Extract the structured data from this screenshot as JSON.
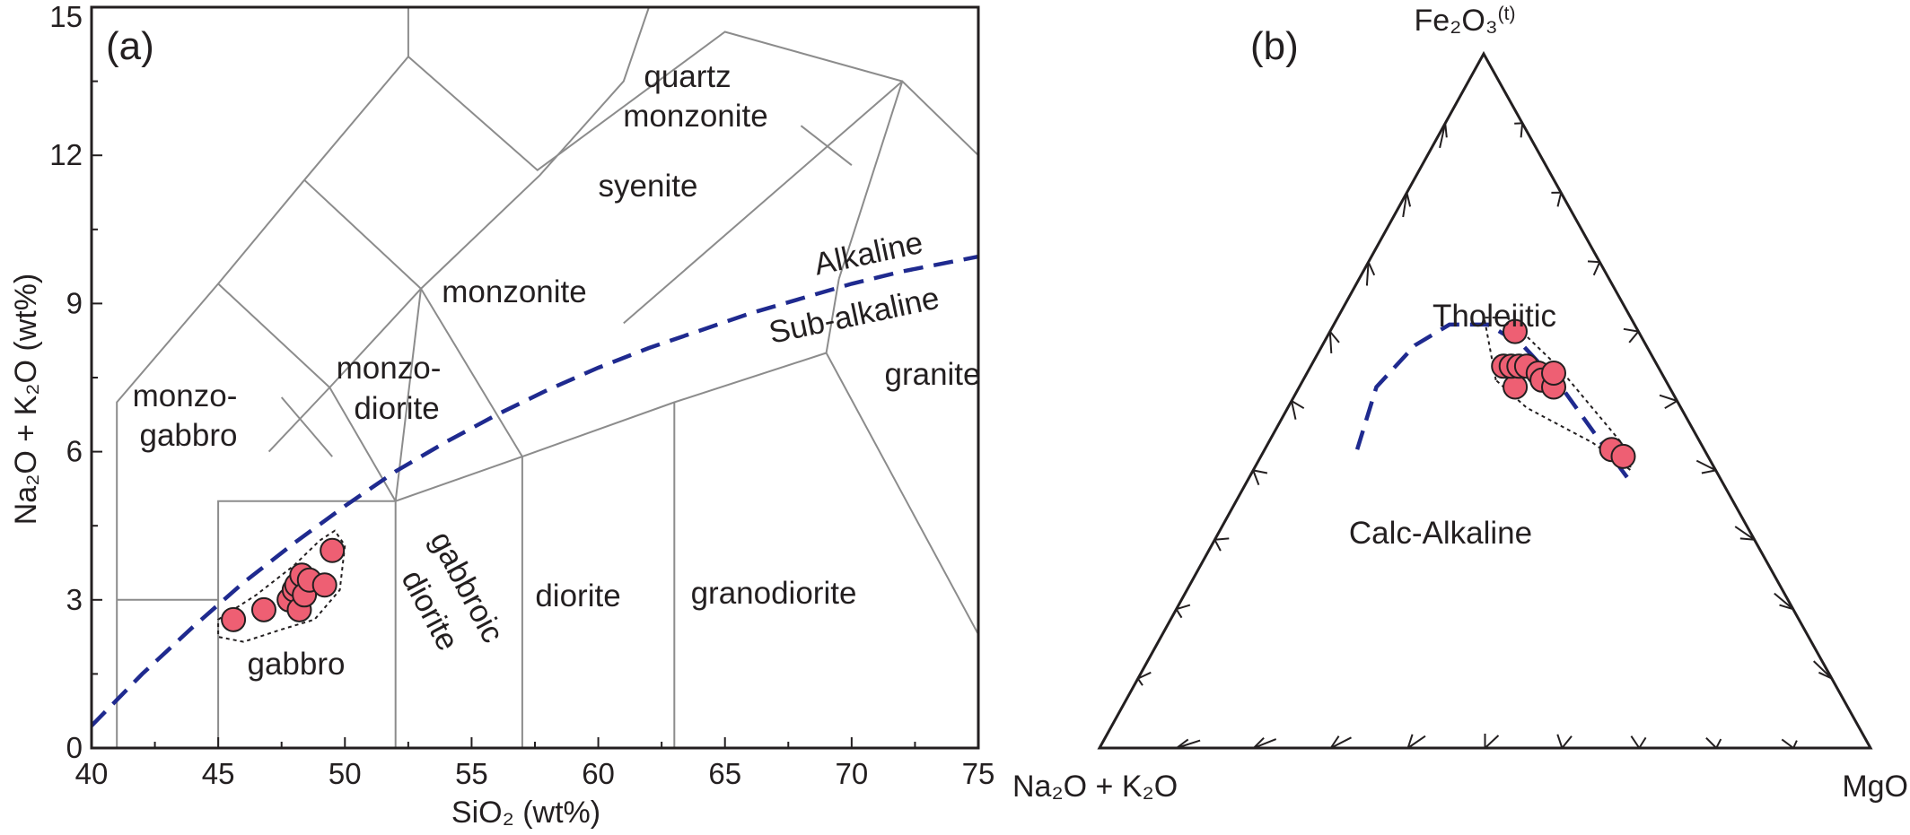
{
  "chart_data": [
    {
      "type": "scatter",
      "panel_label": "(a)",
      "xlabel": "SiO₂ (wt%)",
      "ylabel": "Na₂O + K₂O (wt%)",
      "xlim": [
        40,
        75
      ],
      "ylim": [
        0,
        15
      ],
      "xticks": [
        "40",
        "45",
        "50",
        "55",
        "60",
        "65",
        "70",
        "75"
      ],
      "yticks": [
        "0",
        "3",
        "6",
        "9",
        "12",
        "15"
      ],
      "grid": false,
      "field_labels": [
        "quartz",
        "monzonite",
        "syenite",
        "Alkaline",
        "monzonite",
        "Sub-alkaline",
        "monzo-",
        "diorite",
        "monzo-",
        "gabbro",
        "granite",
        "gabbroic",
        "diorite",
        "diorite",
        "granodiorite",
        "gabbro"
      ],
      "field_boundaries": [
        [
          [
            41,
            0
          ],
          [
            41,
            7
          ],
          [
            45,
            9.4
          ],
          [
            48.4,
            11.5
          ],
          [
            52.5,
            14
          ],
          [
            52.5,
            15
          ]
        ],
        [
          [
            45,
            0
          ],
          [
            45,
            5
          ],
          [
            52,
            5
          ],
          [
            57,
            5.9
          ],
          [
            63,
            7
          ],
          [
            69,
            8
          ],
          [
            75,
            2.3
          ]
        ],
        [
          [
            52,
            0
          ],
          [
            52,
            5
          ],
          [
            53,
            9.3
          ],
          [
            57.7,
            11.6
          ],
          [
            61,
            13.5
          ],
          [
            62,
            15
          ]
        ],
        [
          [
            57,
            0
          ],
          [
            57,
            5.9
          ]
        ],
        [
          [
            63,
            0
          ],
          [
            63,
            7
          ]
        ],
        [
          [
            45,
            9.4
          ],
          [
            49.4,
            7.3
          ],
          [
            52,
            5
          ]
        ],
        [
          [
            49.4,
            7.3
          ],
          [
            53,
            9.3
          ],
          [
            57,
            5.9
          ]
        ],
        [
          [
            48.4,
            11.5
          ],
          [
            53,
            9.3
          ]
        ],
        [
          [
            52.5,
            14
          ],
          [
            57.6,
            11.7
          ],
          [
            65,
            14.5
          ],
          [
            72,
            13.5
          ]
        ],
        [
          [
            61,
            8.6
          ],
          [
            72,
            13.5
          ],
          [
            75,
            12
          ]
        ],
        [
          [
            72,
            13.5
          ],
          [
            69.5,
            9.5
          ]
        ],
        [
          [
            41,
            3
          ],
          [
            45,
            3
          ]
        ],
        [
          [
            47,
            6
          ],
          [
            49.4,
            7.3
          ]
        ],
        [
          [
            49.5,
            5.9
          ],
          [
            47.5,
            7.1
          ]
        ],
        [
          [
            70,
            11.8
          ],
          [
            68,
            12.6
          ]
        ],
        [
          [
            69.5,
            9.5
          ],
          [
            69,
            8
          ]
        ]
      ],
      "dividing_line": [
        [
          40,
          0.45
        ],
        [
          42,
          1.5
        ],
        [
          44,
          2.45
        ],
        [
          46,
          3.35
        ],
        [
          48,
          4.15
        ],
        [
          50,
          4.9
        ],
        [
          52,
          5.6
        ],
        [
          54,
          6.2
        ],
        [
          56,
          6.75
        ],
        [
          58,
          7.25
        ],
        [
          60,
          7.7
        ],
        [
          62,
          8.1
        ],
        [
          64,
          8.45
        ],
        [
          66,
          8.8
        ],
        [
          68,
          9.1
        ],
        [
          70,
          9.4
        ],
        [
          72,
          9.65
        ],
        [
          75,
          9.95
        ]
      ],
      "series": [
        {
          "marker": "circle",
          "color": "#ee5f73",
          "points": [
            [
              45.6,
              2.6
            ],
            [
              46.8,
              2.8
            ],
            [
              47.8,
              3.0
            ],
            [
              48.0,
              3.2
            ],
            [
              48.1,
              3.3
            ],
            [
              48.2,
              2.8
            ],
            [
              48.3,
              3.5
            ],
            [
              48.4,
              3.1
            ],
            [
              48.6,
              3.4
            ],
            [
              49.2,
              3.3
            ],
            [
              49.5,
              4.0
            ]
          ]
        }
      ],
      "sample_outline": [
        [
          45.0,
          2.6
        ],
        [
          46.5,
          3.1
        ],
        [
          48.0,
          3.7
        ],
        [
          49.0,
          4.2
        ],
        [
          49.6,
          4.4
        ],
        [
          50.0,
          4.1
        ],
        [
          49.8,
          3.2
        ],
        [
          48.8,
          2.6
        ],
        [
          47.5,
          2.4
        ],
        [
          46.0,
          2.15
        ],
        [
          45.0,
          2.25
        ]
      ]
    },
    {
      "type": "scatter",
      "panel_label": "(b)",
      "ternary": true,
      "apex_labels": {
        "top": "Fe₂O₃",
        "top_sup": "(t)",
        "left": "Na₂O + K₂O",
        "right": "MgO"
      },
      "field_labels": [
        "Tholeiitic",
        "Calc-Alkaline"
      ],
      "dividing_line": [
        [
          0.45,
          0.43,
          0.12
        ],
        [
          0.38,
          0.52,
          0.1
        ],
        [
          0.3,
          0.58,
          0.12
        ],
        [
          0.24,
          0.61,
          0.15
        ],
        [
          0.19,
          0.61,
          0.2
        ],
        [
          0.16,
          0.58,
          0.26
        ],
        [
          0.14,
          0.52,
          0.34
        ],
        [
          0.13,
          0.45,
          0.42
        ],
        [
          0.12,
          0.39,
          0.49
        ]
      ],
      "series": [
        {
          "marker": "circle",
          "color": "#ee5f73",
          "points": [
            [
              0.2,
              0.52,
              0.28
            ],
            [
              0.2,
              0.55,
              0.25
            ],
            [
              0.19,
              0.55,
              0.26
            ],
            [
              0.18,
              0.55,
              0.27
            ],
            [
              0.17,
              0.55,
              0.28
            ],
            [
              0.16,
              0.54,
              0.3
            ],
            [
              0.16,
              0.53,
              0.31
            ],
            [
              0.15,
              0.52,
              0.33
            ],
            [
              0.14,
              0.54,
              0.32
            ],
            [
              0.16,
              0.6,
              0.24
            ],
            [
              0.12,
              0.43,
              0.45
            ],
            [
              0.11,
              0.42,
              0.47
            ]
          ]
        }
      ],
      "sample_outline": [
        [
          0.22,
          0.53,
          0.25
        ],
        [
          0.19,
          0.62,
          0.19
        ],
        [
          0.16,
          0.62,
          0.22
        ],
        [
          0.13,
          0.55,
          0.32
        ],
        [
          0.1,
          0.43,
          0.47
        ],
        [
          0.11,
          0.4,
          0.49
        ],
        [
          0.14,
          0.44,
          0.42
        ],
        [
          0.2,
          0.49,
          0.31
        ]
      ]
    }
  ]
}
